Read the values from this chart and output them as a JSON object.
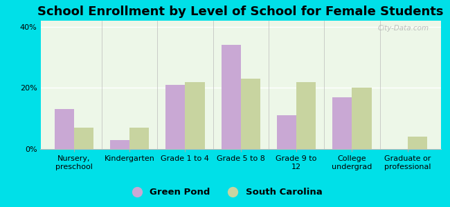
{
  "title": "School Enrollment by Level of School for Female Students",
  "categories": [
    "Nursery,\npreschool",
    "Kindergarten",
    "Grade 1 to 4",
    "Grade 5 to 8",
    "Grade 9 to\n12",
    "College\nundergrad",
    "Graduate or\nprofessional"
  ],
  "green_pond": [
    13,
    3,
    21,
    34,
    11,
    17,
    0
  ],
  "south_carolina": [
    7,
    7,
    22,
    23,
    22,
    20,
    4
  ],
  "green_pond_color": "#c9a8d4",
  "south_carolina_color": "#c8d4a0",
  "background_outer": "#00e0e8",
  "background_inner": "#edf7e8",
  "ylabel_ticks": [
    0,
    20,
    40
  ],
  "ylabel_labels": [
    "0%",
    "20%",
    "40%"
  ],
  "ylim": [
    0,
    42
  ],
  "bar_width": 0.35,
  "title_fontsize": 13,
  "tick_fontsize": 8,
  "legend_fontsize": 9.5,
  "watermark": "City-Data.com"
}
